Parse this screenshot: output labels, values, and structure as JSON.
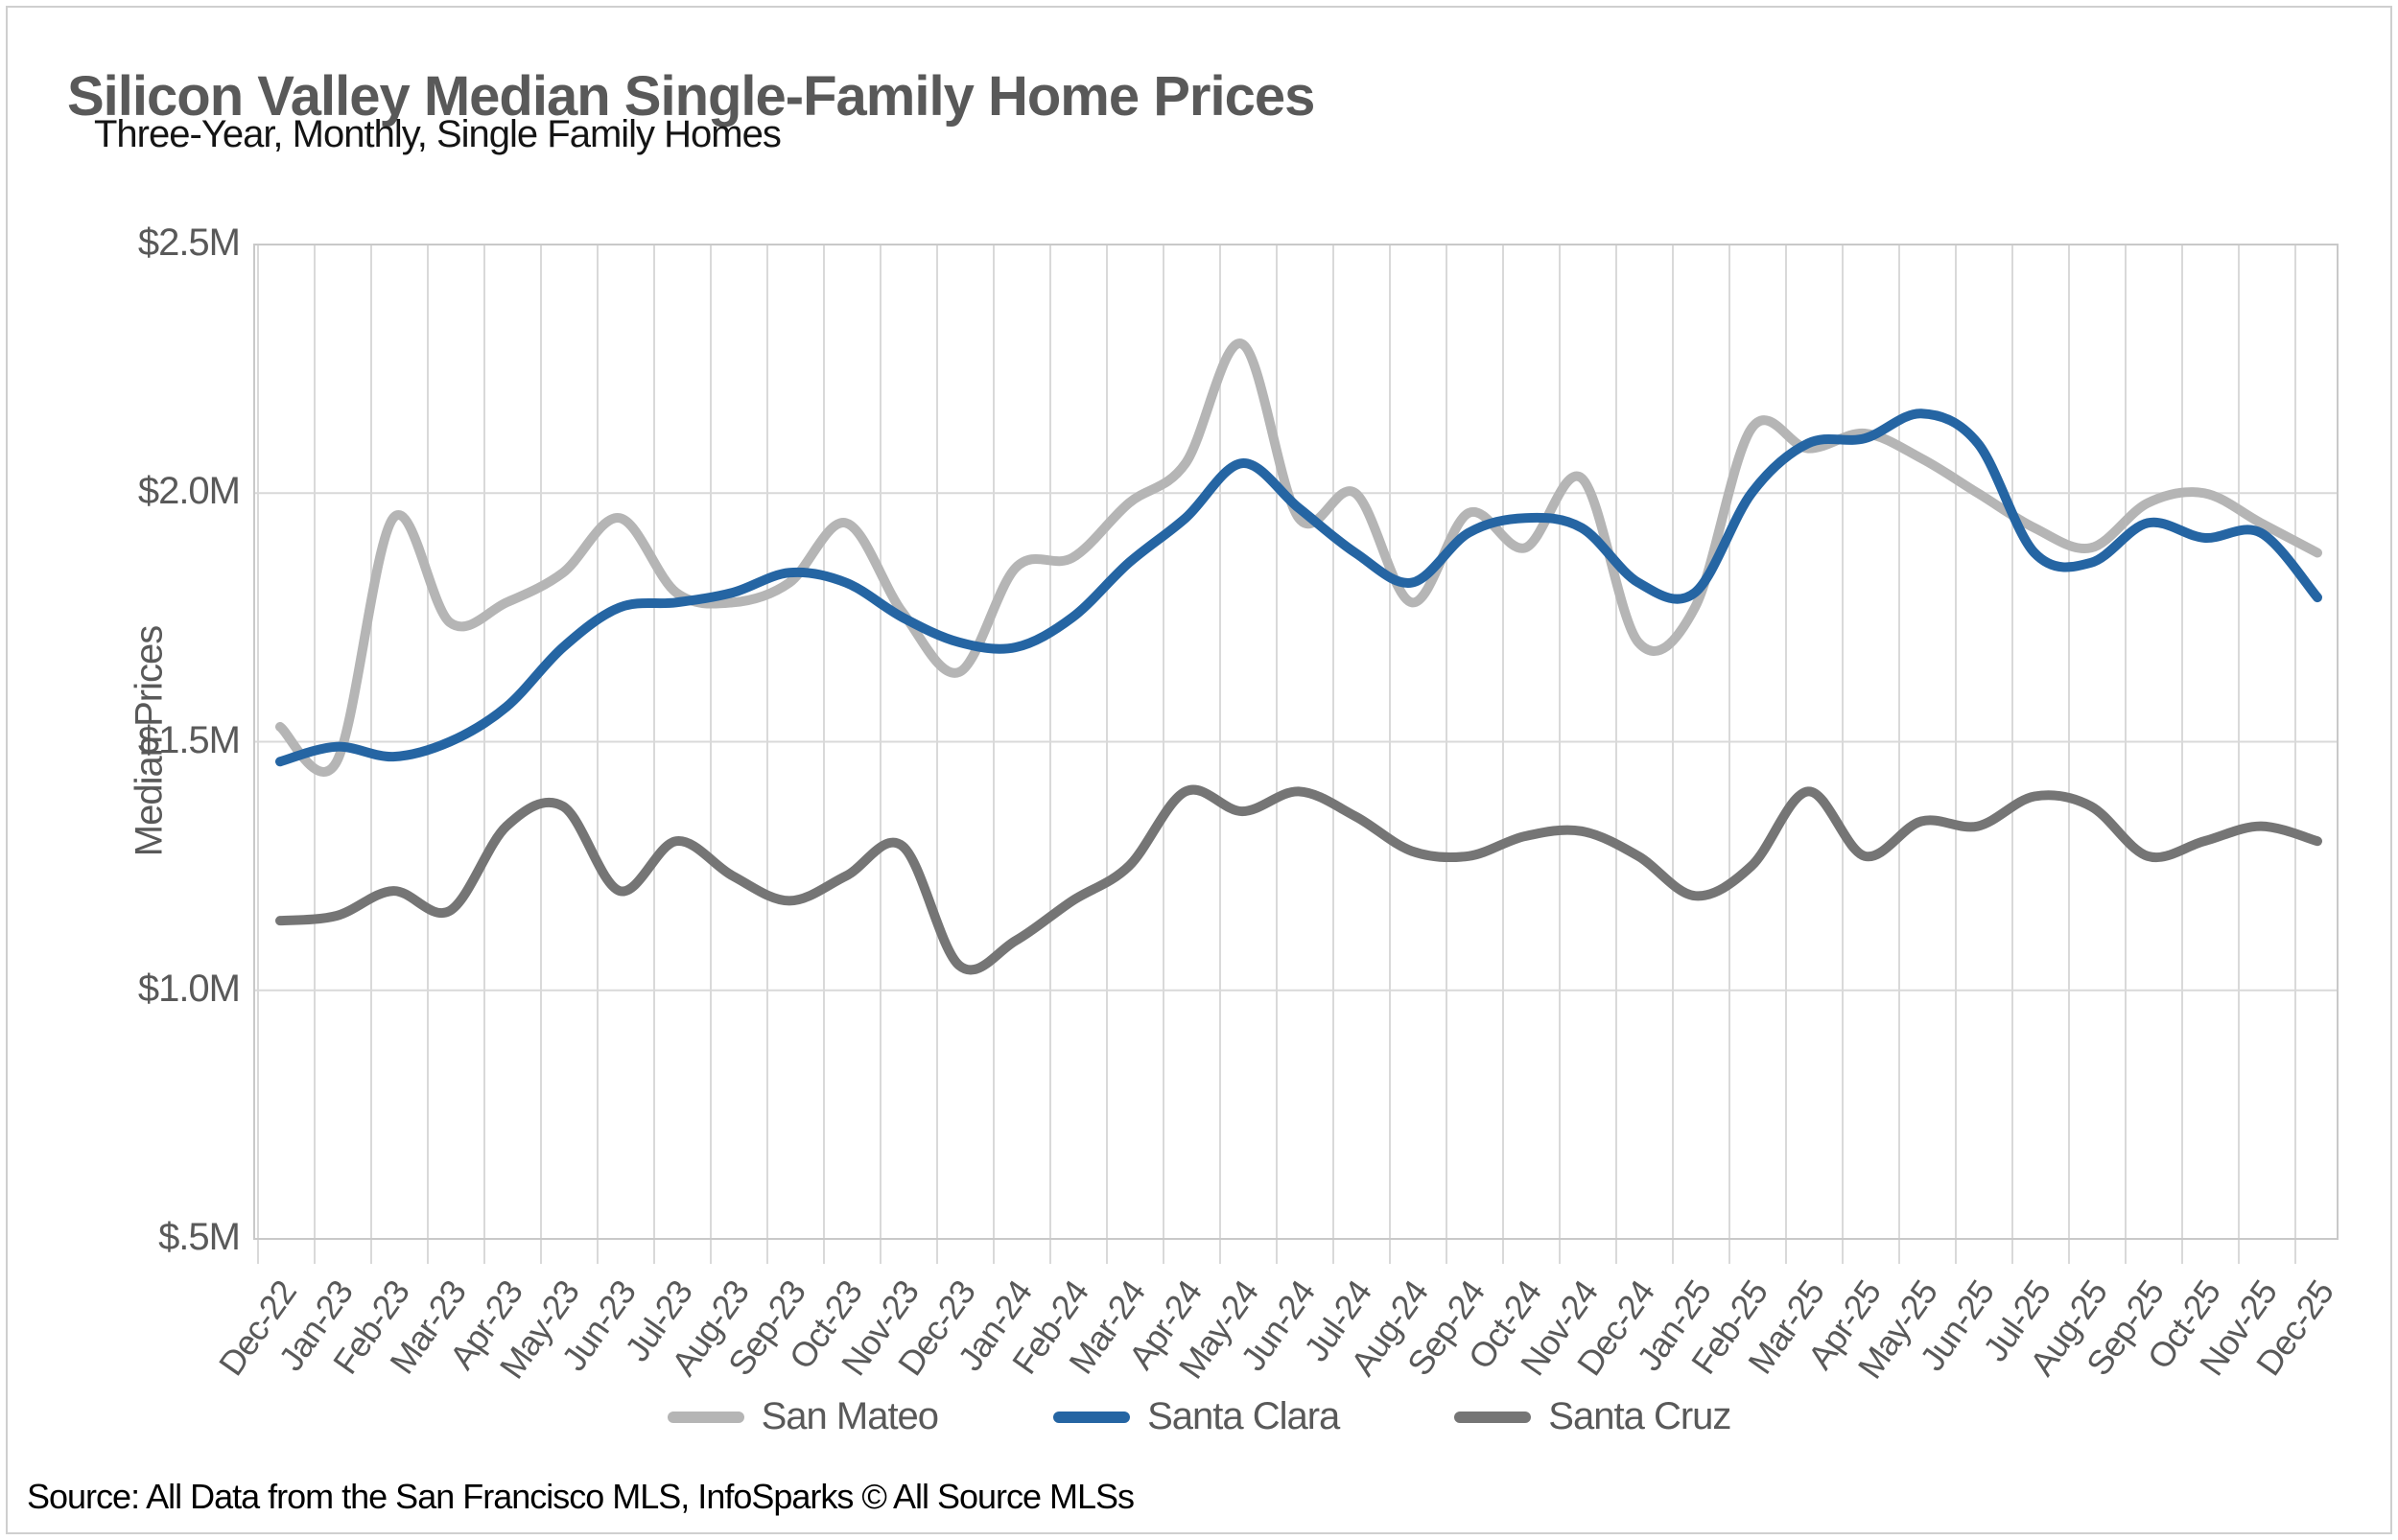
{
  "page": {
    "source": "Source: All Data from the San Francisco MLS, InfoSparks © All Source MLSs"
  },
  "chart_data": {
    "type": "line",
    "title": "Silicon Valley Median Single-Family Home Prices",
    "subtitle": "Three-Year, Monthly, Single Family Homes",
    "ylabel": "Median Prices",
    "xlabel": "",
    "units": "USD millions",
    "ylim": [
      0.5,
      2.5
    ],
    "grid": true,
    "legend_position": "bottom",
    "grid_color": "#d9d9d9",
    "border_color": "#c9c9c9",
    "y_ticks": [
      {
        "label": "$2.5M",
        "value": 2.5
      },
      {
        "label": "$2.0M",
        "value": 2.0
      },
      {
        "label": "$1.5M",
        "value": 1.5
      },
      {
        "label": "$1.0M",
        "value": 1.0
      },
      {
        "label": "$.5M",
        "value": 0.5
      }
    ],
    "x_labels": [
      "Dec-22",
      "Jan-23",
      "Feb-23",
      "Mar-23",
      "Apr-23",
      "May-23",
      "Jun-23",
      "Jul-23",
      "Aug-23",
      "Sep-23",
      "Oct-23",
      "Nov-23",
      "Dec-23",
      "Jan-24",
      "Feb-24",
      "Mar-24",
      "Apr-24",
      "May-24",
      "Jun-24",
      "Jul-24",
      "Aug-24",
      "Sep-24",
      "Oct-24",
      "Nov-24",
      "Dec-24",
      "Jan-25",
      "Feb-25",
      "Mar-25",
      "Apr-25",
      "May-25",
      "Jun-25",
      "Jul-25",
      "Aug-25",
      "Sep-25",
      "Oct-25",
      "Nov-25",
      "Dec-25"
    ],
    "series": [
      {
        "name": "San Mateo",
        "color": "#b5b5b5",
        "values": [
          1.53,
          1.46,
          1.95,
          1.74,
          1.78,
          1.84,
          1.95,
          1.8,
          1.78,
          1.82,
          1.94,
          1.76,
          1.64,
          1.85,
          1.87,
          1.98,
          2.06,
          2.3,
          1.95,
          2.0,
          1.78,
          1.96,
          1.89,
          2.03,
          1.7,
          1.77,
          2.13,
          2.09,
          2.12,
          2.07,
          2.0,
          1.93,
          1.89,
          1.98,
          2.0,
          1.94,
          1.88
        ]
      },
      {
        "name": "Santa Clara",
        "color": "#2565a3",
        "values": [
          1.46,
          1.49,
          1.47,
          1.5,
          1.57,
          1.69,
          1.77,
          1.78,
          1.8,
          1.84,
          1.82,
          1.75,
          1.7,
          1.69,
          1.75,
          1.86,
          1.95,
          2.06,
          1.97,
          1.88,
          1.82,
          1.92,
          1.95,
          1.93,
          1.82,
          1.8,
          2.0,
          2.1,
          2.11,
          2.16,
          2.1,
          1.88,
          1.86,
          1.94,
          1.91,
          1.92,
          1.79
        ]
      },
      {
        "name": "Santa Cruz",
        "color": "#757575",
        "values": [
          1.14,
          1.15,
          1.2,
          1.16,
          1.33,
          1.37,
          1.2,
          1.3,
          1.23,
          1.18,
          1.23,
          1.29,
          1.05,
          1.1,
          1.18,
          1.25,
          1.4,
          1.36,
          1.4,
          1.35,
          1.28,
          1.27,
          1.31,
          1.32,
          1.27,
          1.19,
          1.25,
          1.4,
          1.27,
          1.34,
          1.33,
          1.39,
          1.37,
          1.27,
          1.3,
          1.33,
          1.3
        ]
      }
    ]
  }
}
